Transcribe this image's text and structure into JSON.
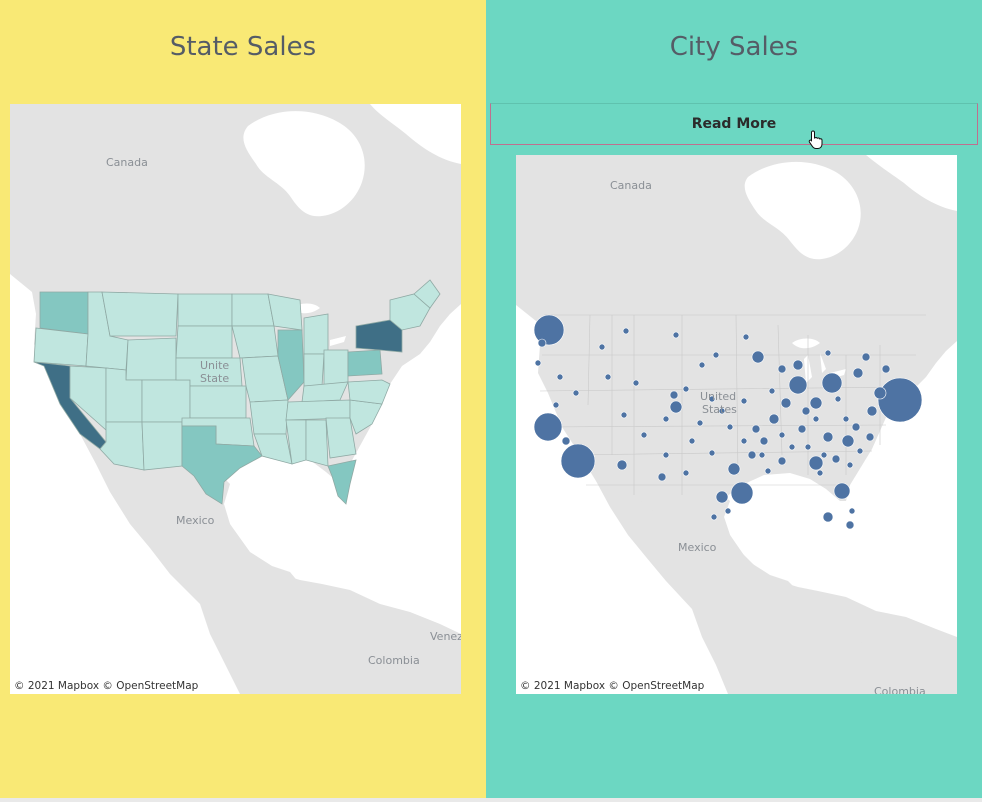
{
  "colors": {
    "left_background": "#f9e975",
    "right_background": "#6cd7c2",
    "title_color": "#555c66",
    "bubble_color": "#4e73a3",
    "state_low": "#c0e6df",
    "state_mid": "#84c7c1",
    "state_high": "#3f6f86"
  },
  "state_sales": {
    "title": "State Sales",
    "map": {
      "labels": {
        "canada": "Canada",
        "mexico": "Mexico",
        "colombia": "Colombia",
        "venezuela": "Venez",
        "us_top": "Unite",
        "us_bottom": "State"
      },
      "attribution": "© 2021 Mapbox  © OpenStreetMap"
    }
  },
  "city_sales": {
    "title": "City Sales",
    "read_more_label": "Read More",
    "map": {
      "labels": {
        "canada": "Canada",
        "mexico": "Mexico",
        "colombia": "Colombia",
        "us_top": "United",
        "us_bottom": "States"
      },
      "attribution": "© 2021 Mapbox  © OpenStreetMap"
    }
  },
  "cursor_icon": "hand-pointer-icon"
}
